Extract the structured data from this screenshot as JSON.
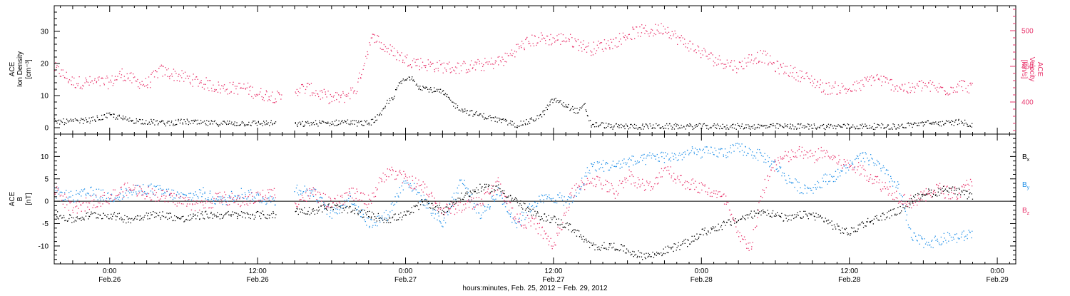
{
  "colors": {
    "black": "#000000",
    "blue": "#1f8fe8",
    "pink": "#e8336b"
  },
  "chart_data": [
    {
      "type": "scatter",
      "panel": "top",
      "ylabel_left": [
        "ACE",
        "Ion Density",
        "[cm⁻³]"
      ],
      "ylabel_right": [
        "ACE",
        "Velocity",
        "[km/s]"
      ],
      "ylim_left": [
        -2,
        38
      ],
      "ylim_right": [
        355,
        535
      ],
      "yticks_left": [
        0,
        10,
        20,
        30
      ],
      "yticks_right": [
        400,
        450,
        500
      ],
      "xlim_hours": [
        -4.5,
        73.5
      ],
      "series": [
        {
          "axis": "left",
          "color": "#000000",
          "x": [
            -4.5,
            -3,
            -1.5,
            0,
            1.5,
            3,
            4.5,
            6,
            7.5,
            9,
            10.5,
            12,
            13.5,
            14.5,
            15,
            16.5,
            18,
            19,
            20,
            21,
            22,
            22.5,
            23,
            23.5,
            24,
            24.5,
            25,
            26,
            27,
            28,
            29,
            30,
            31,
            32,
            33,
            34,
            35,
            36,
            37,
            37.5,
            38,
            38.5,
            39,
            40,
            40.5,
            41,
            42,
            42.5,
            43,
            44,
            45,
            46,
            47,
            48,
            49,
            50,
            51,
            52,
            53,
            54,
            55,
            56,
            57,
            58,
            59,
            60,
            61,
            62,
            63,
            64,
            65,
            66,
            67,
            68,
            69,
            70
          ],
          "y": [
            2,
            2,
            2.5,
            4,
            2.5,
            2,
            1.5,
            2,
            1.5,
            1.5,
            1.5,
            1.5,
            1.5,
            null,
            1,
            1.5,
            1.5,
            2,
            1.5,
            1.5,
            4,
            8,
            10,
            14,
            15,
            16,
            13,
            12,
            11,
            7,
            5,
            4,
            3,
            2,
            1,
            2,
            4,
            9,
            7,
            6,
            5,
            7,
            1,
            1,
            0.5,
            0.5,
            0.5,
            0.5,
            0.5,
            0.5,
            0.5,
            0.5,
            0.5,
            0.5,
            0.5,
            0.5,
            0.5,
            0.5,
            0.5,
            0.5,
            0.5,
            0.5,
            0.5,
            0.5,
            0.5,
            0.5,
            0.5,
            0.5,
            0.5,
            0.5,
            1,
            1.5,
            1.5,
            1.5,
            2,
            1
          ]
        },
        {
          "axis": "right",
          "color": "#e8336b",
          "x": [
            -4.5,
            -3,
            -1.5,
            0,
            1,
            2,
            3,
            4,
            5,
            6,
            7,
            8,
            9,
            10,
            11,
            12,
            13,
            14,
            14.5,
            15,
            16,
            17,
            18,
            19,
            20,
            21,
            21.5,
            22,
            23,
            24,
            25,
            26,
            27,
            28,
            29,
            30,
            31,
            32,
            33,
            34,
            35,
            36,
            37,
            38,
            39,
            40,
            41,
            42,
            43,
            44,
            45,
            46,
            47,
            48,
            49,
            50,
            51,
            52,
            53,
            54,
            55,
            56,
            57,
            58,
            59,
            60,
            61,
            62,
            63,
            64,
            65,
            66,
            67,
            68,
            69,
            70
          ],
          "y": [
            448,
            428,
            428,
            428,
            440,
            430,
            425,
            445,
            440,
            435,
            430,
            425,
            420,
            420,
            420,
            412,
            410,
            405,
            null,
            418,
            420,
            412,
            405,
            408,
            420,
            480,
            495,
            480,
            470,
            460,
            455,
            452,
            450,
            448,
            450,
            452,
            455,
            460,
            475,
            485,
            490,
            488,
            490,
            482,
            475,
            480,
            485,
            495,
            500,
            500,
            505,
            490,
            480,
            470,
            460,
            455,
            450,
            462,
            465,
            450,
            445,
            438,
            430,
            420,
            420,
            418,
            425,
            435,
            428,
            422,
            418,
            425,
            420,
            418,
            425,
            420
          ]
        }
      ]
    },
    {
      "type": "scatter",
      "panel": "bottom",
      "ylabel_left": [
        "ACE",
        "B",
        "[nT]"
      ],
      "ylim": [
        -14,
        15
      ],
      "yticks": [
        -10,
        -5,
        0,
        5,
        10
      ],
      "xlim_hours": [
        -4.5,
        73.5
      ],
      "xticks_hours": [
        0,
        12,
        24,
        36,
        48,
        60,
        72
      ],
      "xtick_labels": [
        "0:00",
        "12:00",
        "0:00",
        "12:00",
        "0:00",
        "12:00",
        "0:00"
      ],
      "xtick_dates": [
        "Feb.26",
        "Feb.26",
        "Feb.27",
        "Feb.27",
        "Feb.28",
        "Feb.28",
        "Feb.29"
      ],
      "xlabel": "hours:minutes, Feb. 25, 2012 − Feb. 29, 2012",
      "legend": [
        "B",
        "B",
        "B"
      ],
      "legend_subscripts": [
        "x",
        "y",
        "z"
      ],
      "series": [
        {
          "color": "#000000",
          "x": [
            -4.5,
            -3,
            -1.5,
            0,
            1.5,
            3,
            4.5,
            6,
            7.5,
            9,
            10.5,
            12,
            13.5,
            14.5,
            15,
            16.5,
            18,
            19.5,
            21,
            22.5,
            24,
            25.5,
            27,
            28.5,
            30,
            31.5,
            33,
            34.5,
            36,
            37.5,
            39,
            40,
            41,
            42,
            43,
            44,
            45,
            46,
            47,
            48,
            49,
            50,
            51,
            52,
            53,
            54,
            55,
            56,
            57,
            58,
            59,
            60,
            61,
            62,
            63,
            64,
            65,
            66,
            67,
            68,
            69,
            70
          ],
          "y": [
            -3,
            -4,
            -3,
            -3,
            -4,
            -3,
            -3,
            -4,
            -3,
            -3,
            -3,
            -3,
            -3,
            null,
            -2,
            -2,
            -1,
            -2,
            -3,
            -4,
            -3,
            0,
            -2,
            1,
            3,
            3,
            0,
            -3,
            -4,
            -6,
            -10,
            -10,
            -10,
            -11,
            -12,
            -12,
            -11,
            -10,
            -9,
            -7,
            -6,
            -5,
            -4,
            -3,
            -2,
            -3,
            -4,
            -3,
            -3,
            -4,
            -6,
            -7,
            -5,
            -4,
            -3,
            -2,
            0,
            2,
            2,
            3,
            2,
            1
          ]
        },
        {
          "color": "#1f8fe8",
          "x": [
            -4.5,
            -3,
            -1.5,
            0,
            1.5,
            3,
            4.5,
            6,
            7.5,
            9,
            10.5,
            12,
            13.5,
            14.5,
            15,
            16.5,
            18,
            19.5,
            21,
            22.5,
            24,
            25.5,
            27,
            28.5,
            30,
            31.5,
            33,
            34.5,
            36,
            37.5,
            39,
            40,
            41,
            42,
            43,
            44,
            45,
            46,
            47,
            48,
            49,
            50,
            51,
            52,
            53,
            54,
            55,
            56,
            57,
            58,
            59,
            60,
            61,
            62,
            63,
            64,
            65,
            66,
            67,
            68,
            69,
            70
          ],
          "y": [
            2,
            1,
            2,
            1,
            2,
            3,
            2,
            1,
            2,
            0,
            2,
            1,
            0,
            null,
            3,
            2,
            -3,
            1,
            -5,
            -3,
            5,
            0,
            -5,
            5,
            -3,
            2,
            -5,
            0,
            1,
            0,
            8,
            8,
            8,
            9,
            9,
            10,
            10,
            10,
            11,
            11,
            11,
            11,
            12,
            11,
            10,
            8,
            5,
            3,
            3,
            5,
            6,
            8,
            10,
            9,
            6,
            3,
            -8,
            -9,
            -9,
            -8,
            -8,
            -7
          ]
        },
        {
          "color": "#e8336b",
          "x": [
            -4.5,
            -3,
            -1.5,
            0,
            1.5,
            3,
            4.5,
            6,
            7.5,
            9,
            10.5,
            12,
            13.5,
            14.5,
            15,
            16.5,
            18,
            19.5,
            21,
            22.5,
            24,
            25.5,
            27,
            28.5,
            30,
            31.5,
            33,
            34.5,
            36,
            37.5,
            39,
            40,
            41,
            42,
            43,
            44,
            45,
            46,
            47,
            48,
            49,
            50,
            51,
            52,
            53,
            54,
            55,
            56,
            57,
            58,
            59,
            60,
            61,
            62,
            63,
            64,
            65,
            66,
            67,
            68,
            69,
            70
          ],
          "y": [
            3,
            -2,
            0,
            1,
            3,
            2,
            1,
            0,
            -1,
            1,
            0,
            1,
            2,
            null,
            0,
            2,
            -1,
            2,
            0,
            7,
            5,
            3,
            -2,
            -1,
            0,
            4,
            -4,
            -5,
            -10,
            2,
            5,
            4,
            2,
            6,
            4,
            3,
            8,
            5,
            4,
            3,
            2,
            0,
            -8,
            -10,
            3,
            9,
            10,
            11,
            10,
            11,
            9,
            8,
            7,
            5,
            3,
            1,
            0,
            1,
            3,
            2,
            2,
            5
          ]
        }
      ]
    }
  ]
}
